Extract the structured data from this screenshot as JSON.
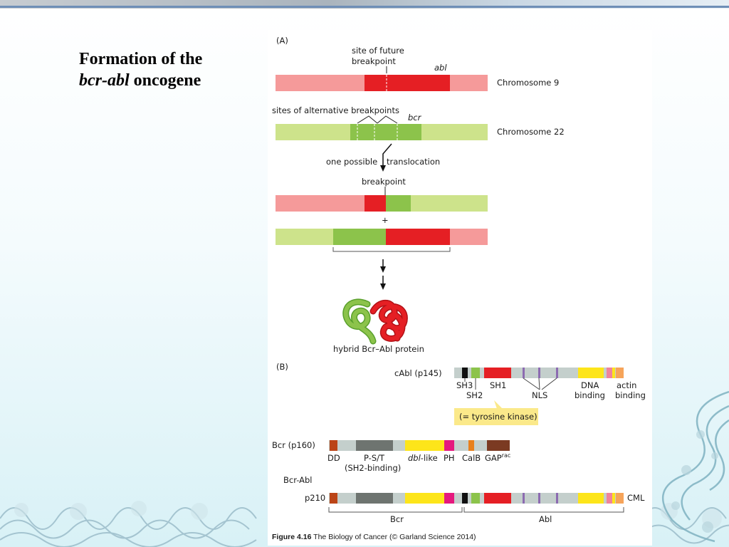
{
  "slide": {
    "title_line1": "Formation of the",
    "title_italic": "bcr-abl",
    "title_rest": " oncogene"
  },
  "panel_a": {
    "label": "(A)",
    "future_breakpoint_1": "site of future",
    "future_breakpoint_2": "breakpoint",
    "abl": "abl",
    "chromosome9": "Chromosome 9",
    "alt_breakpoints": "sites of alternative breakpoints",
    "bcr": "bcr",
    "chromosome22": "Chromosome 22",
    "one_possible": "one possible",
    "translocation": "translocation",
    "breakpoint": "breakpoint",
    "plus": "+",
    "protein_label": "hybrid Bcr–Abl protein"
  },
  "panel_b": {
    "label": "(B)",
    "cabl": "cAbl (p145)",
    "sh3": "SH3",
    "sh2": "SH2",
    "sh1": "SH1",
    "nls": "NLS",
    "dna_1": "DNA",
    "dna_2": "binding",
    "actin_1": "actin",
    "actin_2": "binding",
    "tyrosine_kinase": "(= tyrosine kinase)",
    "bcr_p160": "Bcr (p160)",
    "dd": "DD",
    "pst": "P-S/T",
    "sh2_binding": "(SH2-binding)",
    "dbl": "dbl",
    "like": "-like",
    "ph": "PH",
    "calb": "CalB",
    "gap": "GAP",
    "rac": "rac",
    "bcr_abl": "Bcr-Abl",
    "p210": "p210",
    "cml": "CML",
    "bcr_bracket": "Bcr",
    "abl_bracket": "Abl"
  },
  "caption": {
    "bold": "Figure 4.16",
    "rest": " The Biology of Cancer (© Garland Science 2014)"
  },
  "colors": {
    "abl_red": "#e51f24",
    "abl_pink": "#f59a9a",
    "bcr_green": "#8cc34b",
    "bcr_light": "#cde38b",
    "domain_grey": "#c4cfcc",
    "pst_grey": "#6e7470",
    "yellow": "#fde51a",
    "magenta": "#e5197e",
    "brown": "#7b3a22",
    "orange_dd": "#bb4417",
    "callout": "#fbe98a"
  }
}
